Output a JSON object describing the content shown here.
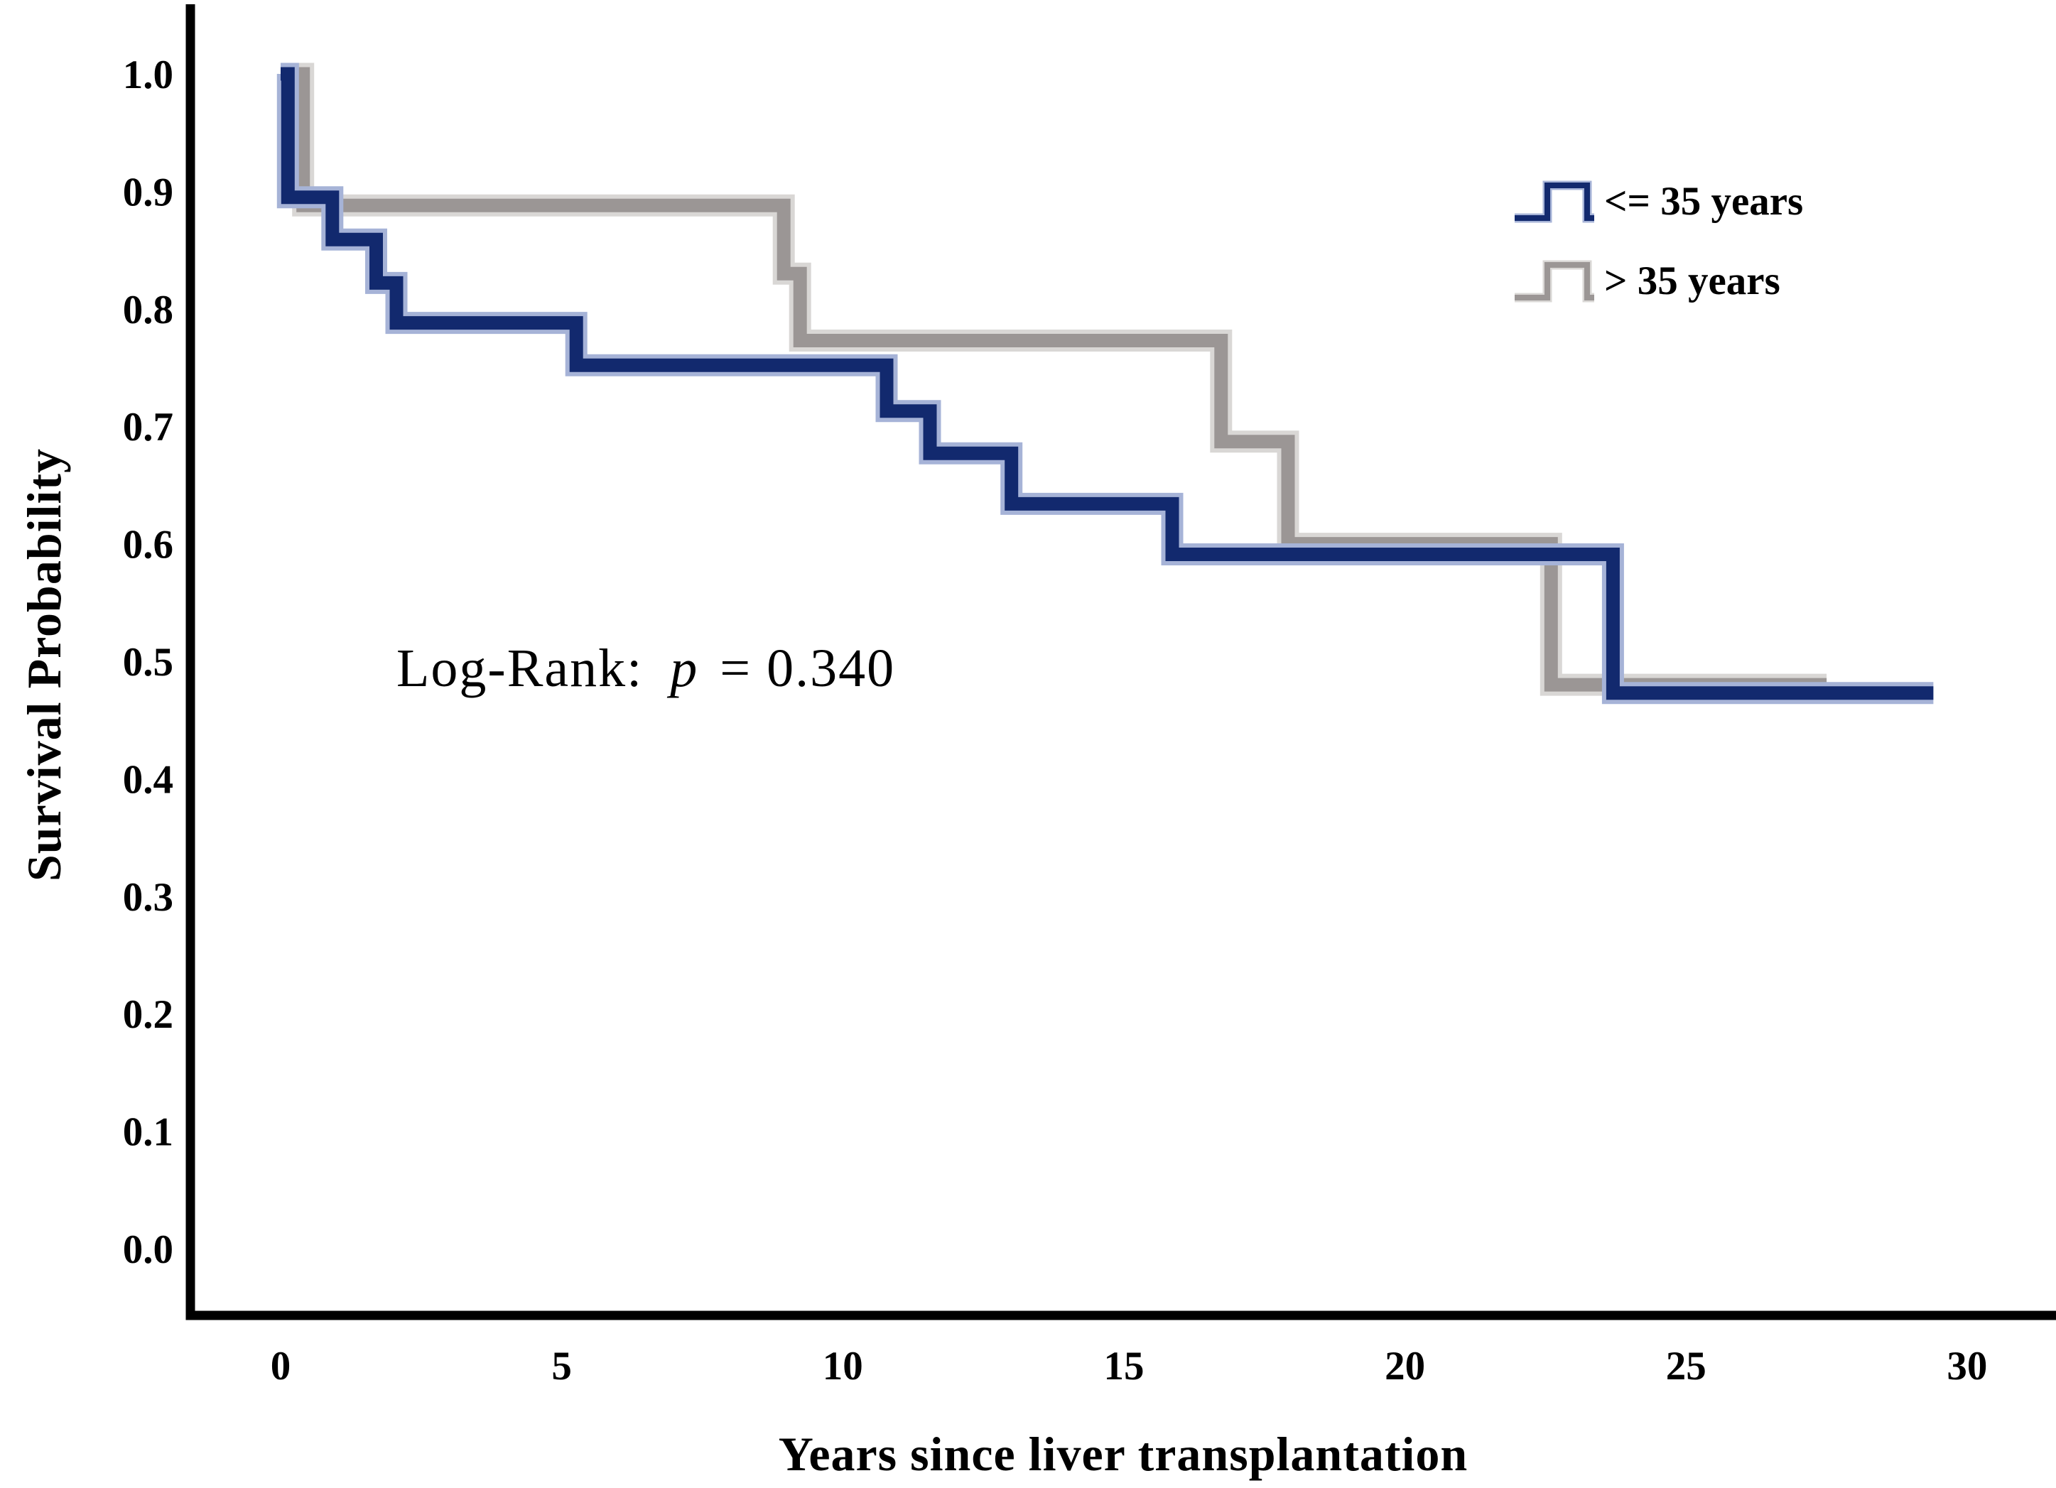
{
  "chart_data": {
    "type": "line",
    "subtype": "kaplan-meier-step",
    "title": "",
    "xlabel": "Years since liver transplantation",
    "ylabel": "Survival Probability",
    "xticks": [
      0,
      5,
      10,
      15,
      20,
      25,
      30
    ],
    "ytick_labels": [
      "1.0",
      "0.9",
      "0.8",
      "0.7",
      "0.6",
      "0.5",
      "0.4",
      "0.3",
      "0.2",
      "0.1",
      "0.0"
    ],
    "xlim": [
      0,
      30
    ],
    "ylim": [
      0.0,
      1.0
    ],
    "grid": false,
    "legend_position": "upper-right-inside",
    "annotation": {
      "prefix": "Log-Rank:",
      "pvar": "p",
      "rest": "= 0.340"
    },
    "legend": [
      {
        "label": "<= 35 years",
        "series_key": "le35"
      },
      {
        "label": "> 35 years",
        "series_key": "gt35"
      }
    ],
    "series": [
      {
        "name": "> 35 years",
        "key": "gt35",
        "color_core": "#9b9695",
        "color_halo": "#d9d7d5",
        "steps": [
          [
            0,
            1.0
          ],
          [
            0.4,
            1.0
          ],
          [
            0.4,
            0.888
          ],
          [
            8.95,
            0.888
          ],
          [
            8.95,
            0.83
          ],
          [
            9.24,
            0.83
          ],
          [
            9.24,
            0.773
          ],
          [
            16.73,
            0.773
          ],
          [
            16.73,
            0.687
          ],
          [
            17.92,
            0.687
          ],
          [
            17.92,
            0.6
          ],
          [
            22.6,
            0.6
          ],
          [
            22.6,
            0.48
          ],
          [
            27.5,
            0.48
          ]
        ]
      },
      {
        "name": "<= 35 years",
        "key": "le35",
        "color_core": "#12296e",
        "color_halo": "#a6b3d7",
        "steps": [
          [
            0,
            1.0
          ],
          [
            0.13,
            1.0
          ],
          [
            0.13,
            0.895
          ],
          [
            0.92,
            0.895
          ],
          [
            0.92,
            0.859
          ],
          [
            1.7,
            0.859
          ],
          [
            1.7,
            0.822
          ],
          [
            2.06,
            0.822
          ],
          [
            2.06,
            0.788
          ],
          [
            5.26,
            0.788
          ],
          [
            5.26,
            0.752
          ],
          [
            10.78,
            0.752
          ],
          [
            10.78,
            0.713
          ],
          [
            11.55,
            0.713
          ],
          [
            11.55,
            0.677
          ],
          [
            13.0,
            0.677
          ],
          [
            13.0,
            0.634
          ],
          [
            15.86,
            0.634
          ],
          [
            15.86,
            0.591
          ],
          [
            23.7,
            0.591
          ],
          [
            23.7,
            0.473
          ],
          [
            29.4,
            0.473
          ]
        ]
      }
    ],
    "axis_color": "#000000",
    "text_color": "#000000"
  }
}
